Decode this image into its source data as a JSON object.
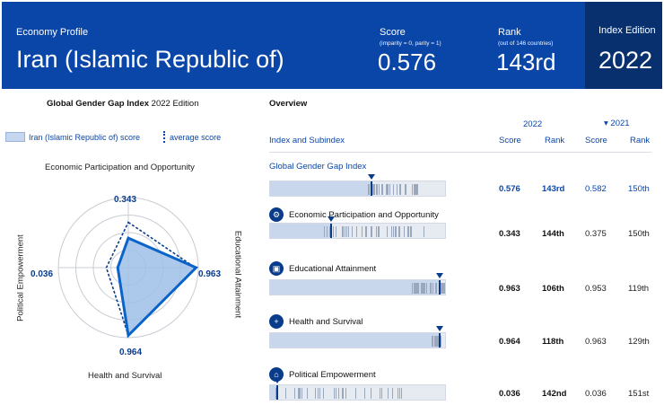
{
  "banner": {
    "profile_label": "Economy Profile",
    "country": "Iran (Islamic Republic of)",
    "score_label": "Score",
    "score_sub": "(imparity = 0, parity = 1)",
    "score_value": "0.576",
    "rank_label": "Rank",
    "rank_sub": "(out of 146 countries)",
    "rank_value": "143rd",
    "edition_label": "Index Edition",
    "edition_value": "2022"
  },
  "radar": {
    "title_bold": "Global Gender Gap Index",
    "title_rest": " 2022 Edition",
    "legend_score": "Iran (Islamic Republic of) score",
    "legend_avg": "average score",
    "axes": [
      "Economic Participation and Opportunity",
      "Educational Attainment",
      "Health and Survival",
      "Political Empowerment"
    ],
    "values": [
      "0.343",
      "0.963",
      "0.964",
      "0.036"
    ],
    "scores": [
      0.343,
      0.963,
      0.964,
      0.036
    ],
    "averages": [
      0.6,
      0.95,
      0.96,
      0.22
    ]
  },
  "overview": {
    "title": "Overview",
    "year_2022": "2022",
    "year_2021": "▾ 2021",
    "col_index": "Index and Subindex",
    "col_score": "Score",
    "col_rank": "Rank",
    "col_score_2021": "Score",
    "col_rank_2021": "Rank",
    "rows": [
      {
        "name": "Global Gender Gap Index",
        "score": "0.576",
        "rank": "143rd",
        "score21": "0.582",
        "rank21": "150th",
        "value": 0.576
      },
      {
        "name": "Economic Participation and Opportunity",
        "score": "0.343",
        "rank": "144th",
        "score21": "0.375",
        "rank21": "150th",
        "value": 0.343
      },
      {
        "name": "Educational Attainment",
        "score": "0.963",
        "rank": "106th",
        "score21": "0.953",
        "rank21": "119th",
        "value": 0.963
      },
      {
        "name": "Health and Survival",
        "score": "0.964",
        "rank": "118th",
        "score21": "0.963",
        "rank21": "129th",
        "value": 0.964
      },
      {
        "name": "Political Empowerment",
        "score": "0.036",
        "rank": "142nd",
        "score21": "0.036",
        "rank21": "151st",
        "value": 0.036
      }
    ]
  },
  "colors": {
    "brand": "#0a46a8",
    "brand_dark": "#08306e"
  }
}
